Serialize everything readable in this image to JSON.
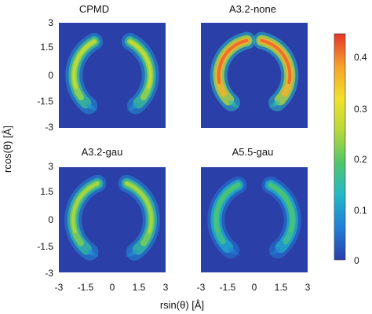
{
  "chart_data": {
    "type": "heatmap",
    "xlabel": "rsin(θ) [Å]",
    "ylabel": "rcos(θ) [Å]",
    "xlim": [
      -3,
      3
    ],
    "ylim": [
      -3,
      3
    ],
    "x_ticks": [
      "-3",
      "-1.5",
      "0",
      "1.5",
      "3"
    ],
    "y_ticks": [
      "3",
      "1.5",
      "0",
      "-1.5",
      "-3"
    ],
    "colorbar": {
      "range": [
        0,
        0.45
      ],
      "tick_labels": [
        "0.4",
        "0.3",
        "0.2",
        "0.1",
        "0"
      ],
      "colors": [
        "#2b3fa8",
        "#1f7fd6",
        "#22b8c9",
        "#4fc66a",
        "#b7d83a",
        "#f2e12c",
        "#f6a12a",
        "#e6352a"
      ]
    },
    "panels": [
      {
        "title": "CPMD",
        "peak": 0.27,
        "radius": 2.15,
        "arc_half_gap_deg": 28,
        "low_arc_end_deg": 142
      },
      {
        "title": "A3.2-none",
        "peak": 0.42,
        "radius": 2.0,
        "arc_half_gap_deg": 12,
        "low_arc_end_deg": 140
      },
      {
        "title": "A3.2-gau",
        "peak": 0.25,
        "radius": 2.2,
        "arc_half_gap_deg": 22,
        "low_arc_end_deg": 145
      },
      {
        "title": "A5.5-gau",
        "peak": 0.19,
        "radius": 2.15,
        "arc_half_gap_deg": 25,
        "low_arc_end_deg": 142
      }
    ],
    "background_color": "#2b3fa8"
  }
}
